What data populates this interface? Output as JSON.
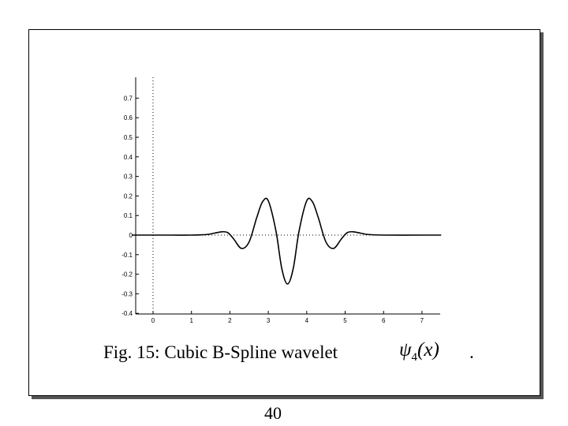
{
  "caption": {
    "text": "Fig. 15: Cubic B-Spline wavelet",
    "symbol": "ψ",
    "subscript": "4",
    "argument": "(x)",
    "trailing": "."
  },
  "page_number": "40",
  "chart_data": {
    "type": "line",
    "title": "",
    "xlabel": "",
    "ylabel": "",
    "xlim": [
      -0.55,
      7.5
    ],
    "ylim": [
      -0.4,
      0.8
    ],
    "x_ticks": [
      "0",
      "1",
      "2",
      "3",
      "4",
      "5",
      "6",
      "7"
    ],
    "y_ticks": [
      "0.7",
      "0.6",
      "0.5",
      "0.4",
      "0.3",
      "0.2",
      "0.1",
      "0",
      "-0.1",
      "-0.2",
      "-0.3",
      "-0.4"
    ],
    "series": [
      {
        "x": [
          -0.55,
          0,
          0.5,
          1.0,
          1.4,
          1.6,
          1.8,
          1.95,
          2.1,
          2.3,
          2.5,
          2.7,
          2.85,
          3.0,
          3.2,
          3.35,
          3.5,
          3.65,
          3.8,
          4.0,
          4.15,
          4.3,
          4.5,
          4.7,
          4.9,
          5.05,
          5.2,
          5.4,
          5.6,
          6.0,
          7.0,
          7.5
        ],
        "y": [
          0,
          0,
          0,
          0,
          0.003,
          0.01,
          0.017,
          0.012,
          -0.02,
          -0.068,
          -0.035,
          0.09,
          0.17,
          0.175,
          0.02,
          -0.17,
          -0.25,
          -0.17,
          0.02,
          0.175,
          0.17,
          0.09,
          -0.035,
          -0.068,
          -0.02,
          0.012,
          0.017,
          0.01,
          0.003,
          0,
          0,
          0
        ]
      }
    ],
    "grid": false,
    "dotted_reference_lines": [
      "x=0",
      "y=0"
    ]
  }
}
